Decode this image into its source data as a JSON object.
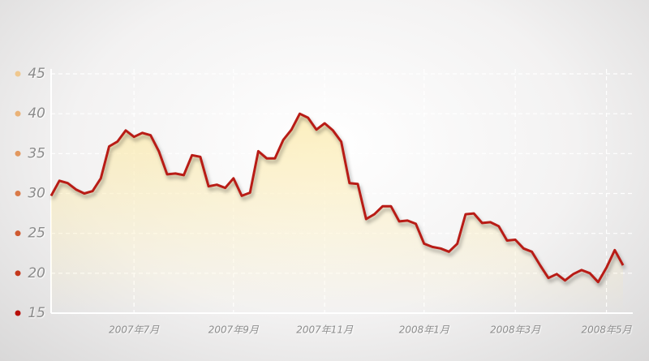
{
  "chart_data": {
    "type": "line",
    "categories": [
      null,
      null,
      null,
      null,
      null,
      null,
      null,
      null,
      null,
      null,
      "2007年7月",
      null,
      null,
      null,
      null,
      null,
      null,
      null,
      null,
      null,
      null,
      null,
      "2007年9月",
      null,
      null,
      null,
      null,
      null,
      null,
      null,
      null,
      null,
      null,
      "2007年11月",
      null,
      null,
      null,
      null,
      null,
      null,
      null,
      null,
      null,
      null,
      null,
      "2008年1月",
      null,
      null,
      null,
      null,
      null,
      null,
      null,
      null,
      null,
      null,
      "2008年3月",
      null,
      null,
      null,
      null,
      null,
      null,
      null,
      null,
      null,
      null,
      "2008年5月",
      null,
      null
    ],
    "series": [
      {
        "color": "#b81c16",
        "values": [
          29.7,
          31.6,
          31.3,
          30.5,
          30.0,
          30.3,
          31.9,
          35.9,
          36.5,
          37.9,
          37.1,
          37.6,
          37.3,
          35.3,
          32.4,
          32.5,
          32.3,
          34.8,
          34.6,
          30.9,
          31.1,
          30.7,
          31.9,
          29.7,
          30.1,
          35.3,
          34.4,
          34.4,
          36.7,
          38.0,
          40.0,
          39.5,
          38.0,
          38.8,
          37.9,
          36.5,
          31.3,
          31.2,
          26.8,
          27.4,
          28.4,
          28.4,
          26.5,
          26.6,
          26.2,
          23.7,
          23.3,
          23.1,
          22.7,
          23.7,
          27.4,
          27.5,
          26.3,
          26.4,
          25.9,
          24.1,
          24.2,
          23.1,
          22.7,
          21.0,
          19.4,
          19.9,
          19.1,
          19.9,
          20.4,
          20.0,
          18.9,
          20.7,
          22.9,
          21.0
        ]
      }
    ],
    "ylim": [
      15,
      45
    ],
    "yticks": [
      15,
      20,
      25,
      30,
      35,
      40,
      45
    ],
    "ytick_colors": [
      "#b80f0a",
      "#c4381c",
      "#cf5a30",
      "#d97a48",
      "#e2985f",
      "#eab277",
      "#f0c88f"
    ],
    "grid": true
  }
}
